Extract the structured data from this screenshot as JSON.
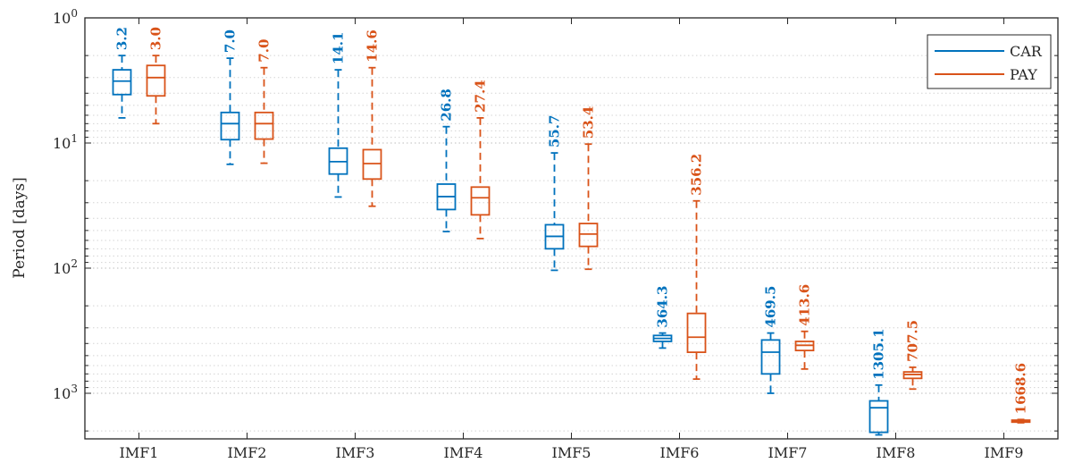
{
  "chart_data": {
    "type": "box",
    "ylabel": "Period [days]",
    "yscale": "log",
    "y_reversed": true,
    "ylim": [
      1,
      2700
    ],
    "yticks": [
      {
        "base": "10",
        "exp": "0",
        "value": 1
      },
      {
        "base": "10",
        "exp": "1",
        "value": 10
      },
      {
        "base": "10",
        "exp": "2",
        "value": 100
      },
      {
        "base": "10",
        "exp": "3",
        "value": 1000
      }
    ],
    "grid": true,
    "legend_position": "top-right",
    "categories": [
      "IMF1",
      "IMF2",
      "IMF3",
      "IMF4",
      "IMF5",
      "IMF6",
      "IMF7",
      "IMF8",
      "IMF9"
    ],
    "series": [
      {
        "name": "CAR",
        "color": "#0072BD",
        "boxes": [
          {
            "category": "IMF1",
            "label": "3.2",
            "whisker_low": 2.0,
            "q1": 2.6,
            "median": 3.2,
            "q3": 4.1,
            "whisker_high": 6.3
          },
          {
            "category": "IMF2",
            "label": "7.0",
            "whisker_low": 2.1,
            "q1": 5.7,
            "median": 7.0,
            "q3": 9.4,
            "whisker_high": 14.8
          },
          {
            "category": "IMF3",
            "label": "14.1",
            "whisker_low": 2.6,
            "q1": 11.0,
            "median": 14.1,
            "q3": 17.7,
            "whisker_high": 27.0
          },
          {
            "category": "IMF4",
            "label": "26.8",
            "whisker_low": 7.4,
            "q1": 21.3,
            "median": 26.8,
            "q3": 34.0,
            "whisker_high": 51.0
          },
          {
            "category": "IMF5",
            "label": "55.7",
            "whisker_low": 12.0,
            "q1": 45.0,
            "median": 55.7,
            "q3": 70.0,
            "whisker_high": 104.0
          },
          {
            "category": "IMF6",
            "label": "364.3",
            "whisker_low": 330,
            "q1": 345,
            "median": 364.3,
            "q3": 385,
            "whisker_high": 435
          },
          {
            "category": "IMF7",
            "label": "469.5",
            "whisker_low": 330,
            "q1": 375,
            "median": 469.5,
            "q3": 700,
            "whisker_high": 1000
          },
          {
            "category": "IMF8",
            "label": "1305.1",
            "whisker_low": 860,
            "q1": 1150,
            "median": 1305.1,
            "q3": 2050,
            "whisker_high": 2150
          }
        ]
      },
      {
        "name": "PAY",
        "color": "#D95319",
        "boxes": [
          {
            "category": "IMF1",
            "label": "3.0",
            "whisker_low": 2.0,
            "q1": 2.4,
            "median": 3.0,
            "q3": 4.2,
            "whisker_high": 7.0
          },
          {
            "category": "IMF2",
            "label": "7.0",
            "whisker_low": 2.5,
            "q1": 5.7,
            "median": 7.0,
            "q3": 9.3,
            "whisker_high": 14.5
          },
          {
            "category": "IMF3",
            "label": "14.6",
            "whisker_low": 2.5,
            "q1": 11.3,
            "median": 14.6,
            "q3": 19.4,
            "whisker_high": 32.0
          },
          {
            "category": "IMF4",
            "label": "27.4",
            "whisker_low": 6.3,
            "q1": 22.5,
            "median": 27.4,
            "q3": 37.5,
            "whisker_high": 58.0
          },
          {
            "category": "IMF5",
            "label": "53.4",
            "whisker_low": 10.2,
            "q1": 44.0,
            "median": 53.4,
            "q3": 67.0,
            "whisker_high": 102.0
          },
          {
            "category": "IMF6",
            "label": "356.2",
            "whisker_low": 29.0,
            "q1": 230,
            "median": 356.2,
            "q3": 470,
            "whisker_high": 770
          },
          {
            "category": "IMF7",
            "label": "413.6",
            "whisker_low": 320,
            "q1": 385,
            "median": 413.6,
            "q3": 455,
            "whisker_high": 640
          },
          {
            "category": "IMF8",
            "label": "707.5",
            "whisker_low": 620,
            "q1": 675,
            "median": 707.5,
            "q3": 760,
            "whisker_high": 925
          },
          {
            "category": "IMF9",
            "label": "1668.6",
            "whisker_low": 1620,
            "q1": 1640,
            "median": 1668.6,
            "q3": 1700,
            "whisker_high": 1720
          }
        ]
      }
    ]
  }
}
